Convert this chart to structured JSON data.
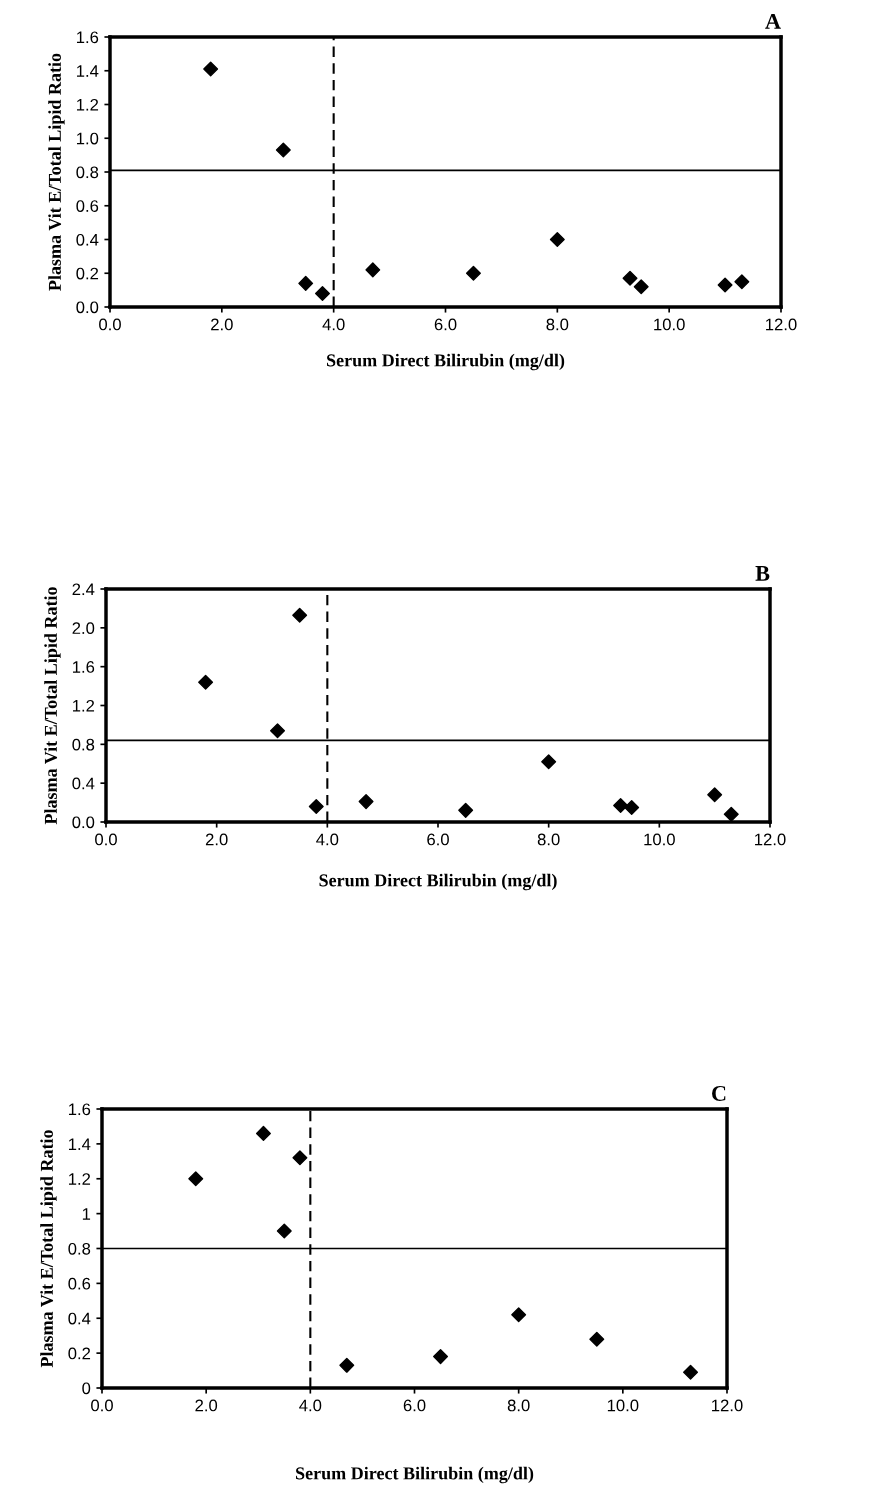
{
  "chart_data": [
    {
      "type": "scatter",
      "title": "A",
      "xlabel": "Serum Direct Bilirubin (mg/dl)",
      "ylabel": "Plasma Vit E/Total Lipid Ratio",
      "x": [
        1.8,
        3.1,
        3.5,
        3.8,
        4.7,
        6.5,
        8.0,
        9.3,
        9.5,
        11.0,
        11.3
      ],
      "series": [
        {
          "color": "#000000",
          "values": [
            1.41,
            0.93,
            0.14,
            0.08,
            0.22,
            0.2,
            0.4,
            0.17,
            0.12,
            0.13,
            0.15
          ]
        }
      ],
      "marker": "diamond",
      "xlim": [
        0,
        12
      ],
      "ylim": [
        0,
        1.6
      ],
      "xticks": [
        {
          "value": 0,
          "label": "0.0"
        },
        {
          "value": 2,
          "label": "2.0"
        },
        {
          "value": 4,
          "label": "4.0"
        },
        {
          "value": 6,
          "label": "6.0"
        },
        {
          "value": 8,
          "label": "8.0"
        },
        {
          "value": 10,
          "label": "10.0"
        },
        {
          "value": 12,
          "label": "12.0"
        }
      ],
      "yticks": [
        {
          "value": 0,
          "label": "0.0"
        },
        {
          "value": 0.2,
          "label": "0.2"
        },
        {
          "value": 0.4,
          "label": "0.4"
        },
        {
          "value": 0.6,
          "label": "0.6"
        },
        {
          "value": 0.8,
          "label": "0.8"
        },
        {
          "value": 1.0,
          "label": "1.0"
        },
        {
          "value": 1.2,
          "label": "1.2"
        },
        {
          "value": 1.4,
          "label": "1.4"
        },
        {
          "value": 1.6,
          "label": "1.6"
        }
      ],
      "ref_lines": [
        {
          "axis": "y",
          "value": 0.81,
          "color": "#000000",
          "line_style": "solid"
        },
        {
          "axis": "x",
          "value": 4.0,
          "color": "#000000",
          "line_style": "dashed"
        }
      ],
      "grid": false,
      "legend": false
    },
    {
      "type": "scatter",
      "title": "B",
      "xlabel": "Serum Direct Bilirubin (mg/dl)",
      "ylabel": "Plasma Vit E/Total Lipid Ratio",
      "x": [
        1.8,
        3.1,
        3.5,
        3.8,
        4.7,
        6.5,
        8.0,
        9.3,
        9.5,
        11.0,
        11.3
      ],
      "series": [
        {
          "color": "#000000",
          "values": [
            1.44,
            0.94,
            2.13,
            0.16,
            0.21,
            0.12,
            0.62,
            0.17,
            0.15,
            0.28,
            0.08
          ]
        }
      ],
      "marker": "diamond",
      "xlim": [
        0,
        12
      ],
      "ylim": [
        0,
        2.4
      ],
      "xticks": [
        {
          "value": 0,
          "label": "0.0"
        },
        {
          "value": 2,
          "label": "2.0"
        },
        {
          "value": 4,
          "label": "4.0"
        },
        {
          "value": 6,
          "label": "6.0"
        },
        {
          "value": 8,
          "label": "8.0"
        },
        {
          "value": 10,
          "label": "10.0"
        },
        {
          "value": 12,
          "label": "12.0"
        }
      ],
      "yticks": [
        {
          "value": 0,
          "label": "0.0"
        },
        {
          "value": 0.4,
          "label": "0.4"
        },
        {
          "value": 0.8,
          "label": "0.8"
        },
        {
          "value": 1.2,
          "label": "1.2"
        },
        {
          "value": 1.6,
          "label": "1.6"
        },
        {
          "value": 2.0,
          "label": "2.0"
        },
        {
          "value": 2.4,
          "label": "2.4"
        }
      ],
      "ref_lines": [
        {
          "axis": "y",
          "value": 0.84,
          "color": "#000000",
          "line_style": "solid"
        },
        {
          "axis": "x",
          "value": 4.0,
          "color": "#000000",
          "line_style": "dashed"
        }
      ],
      "grid": false,
      "legend": false
    },
    {
      "type": "scatter",
      "title": "C",
      "xlabel": "Serum Direct Bilirubin (mg/dl)",
      "ylabel": "Plasma Vit E/Total Lipid Ratio",
      "x": [
        1.8,
        3.1,
        3.5,
        3.8,
        4.7,
        6.5,
        8.0,
        9.5,
        11.3
      ],
      "series": [
        {
          "color": "#000000",
          "values": [
            1.2,
            1.46,
            0.9,
            1.32,
            0.13,
            0.18,
            0.42,
            0.28,
            0.09
          ]
        }
      ],
      "marker": "diamond",
      "xlim": [
        0,
        12
      ],
      "ylim": [
        0,
        1.6
      ],
      "xticks": [
        {
          "value": 0,
          "label": "0.0"
        },
        {
          "value": 2,
          "label": "2.0"
        },
        {
          "value": 4,
          "label": "4.0"
        },
        {
          "value": 6,
          "label": "6.0"
        },
        {
          "value": 8,
          "label": "8.0"
        },
        {
          "value": 10,
          "label": "10.0"
        },
        {
          "value": 12,
          "label": "12.0"
        }
      ],
      "yticks": [
        0,
        0.2,
        0.4,
        0.6,
        0.8,
        1,
        1.2,
        1.4,
        1.6
      ],
      "ref_lines": [
        {
          "axis": "y",
          "value": 0.8,
          "color": "#000000",
          "line_style": "solid"
        },
        {
          "axis": "x",
          "value": 4.0,
          "color": "#000000",
          "line_style": "dashed"
        }
      ],
      "grid": false,
      "legend": false
    }
  ]
}
